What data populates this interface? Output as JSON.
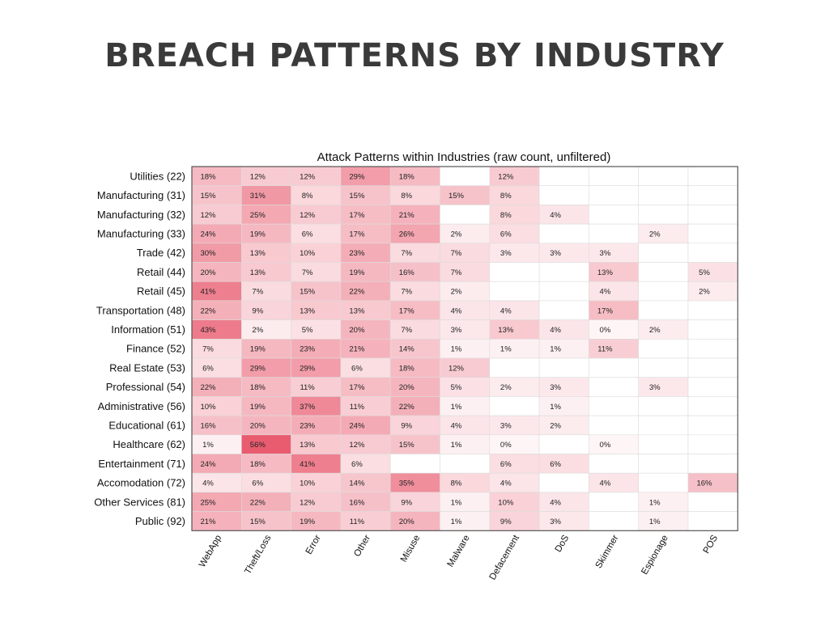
{
  "slide": {
    "title": "BREACH PATTERNS BY INDUSTRY"
  },
  "chart_data": {
    "type": "heatmap",
    "title": "Attack Patterns within Industries (raw count, unfiltered)",
    "colors": {
      "low": "#ffffff",
      "high": "#e8556a",
      "grid": "#dcdcdc",
      "border": "#555555"
    },
    "columns": [
      "WebApp",
      "Theft/Loss",
      "Error",
      "Other",
      "Misuse",
      "Malware",
      "Defacement",
      "DoS",
      "Skimmer",
      "Espionage",
      "POS"
    ],
    "rows": [
      {
        "label": "Utilities (22)",
        "values": [
          18,
          12,
          12,
          29,
          18,
          null,
          12,
          null,
          null,
          null,
          null
        ]
      },
      {
        "label": "Manufacturing (31)",
        "values": [
          15,
          31,
          8,
          15,
          8,
          15,
          8,
          null,
          null,
          null,
          null
        ]
      },
      {
        "label": "Manufacturing (32)",
        "values": [
          12,
          25,
          12,
          17,
          21,
          null,
          8,
          4,
          null,
          null,
          null
        ]
      },
      {
        "label": "Manufacturing (33)",
        "values": [
          24,
          19,
          6,
          17,
          26,
          2,
          6,
          null,
          null,
          2,
          null
        ]
      },
      {
        "label": "Trade (42)",
        "values": [
          30,
          13,
          10,
          23,
          7,
          7,
          3,
          3,
          3,
          null,
          null
        ]
      },
      {
        "label": "Retail (44)",
        "values": [
          20,
          13,
          7,
          19,
          16,
          7,
          null,
          null,
          13,
          null,
          5
        ]
      },
      {
        "label": "Retail (45)",
        "values": [
          41,
          7,
          15,
          22,
          7,
          2,
          null,
          null,
          4,
          null,
          2
        ]
      },
      {
        "label": "Transportation (48)",
        "values": [
          22,
          9,
          13,
          13,
          17,
          4,
          4,
          null,
          17,
          null,
          null
        ]
      },
      {
        "label": "Information (51)",
        "values": [
          43,
          2,
          5,
          20,
          7,
          3,
          13,
          4,
          0,
          2,
          null
        ]
      },
      {
        "label": "Finance (52)",
        "values": [
          7,
          19,
          23,
          21,
          14,
          1,
          1,
          1,
          11,
          null,
          null
        ]
      },
      {
        "label": "Real Estate (53)",
        "values": [
          6,
          29,
          29,
          6,
          18,
          12,
          null,
          null,
          null,
          null,
          null
        ]
      },
      {
        "label": "Professional (54)",
        "values": [
          22,
          18,
          11,
          17,
          20,
          5,
          2,
          3,
          null,
          3,
          null
        ]
      },
      {
        "label": "Administrative (56)",
        "values": [
          10,
          19,
          37,
          11,
          22,
          1,
          null,
          1,
          null,
          null,
          null
        ]
      },
      {
        "label": "Educational (61)",
        "values": [
          16,
          20,
          23,
          24,
          9,
          4,
          3,
          2,
          null,
          null,
          null
        ]
      },
      {
        "label": "Healthcare (62)",
        "values": [
          1,
          56,
          13,
          12,
          15,
          1,
          0,
          null,
          0,
          null,
          null
        ]
      },
      {
        "label": "Entertainment (71)",
        "values": [
          24,
          18,
          41,
          6,
          null,
          null,
          6,
          6,
          null,
          null,
          null
        ]
      },
      {
        "label": "Accomodation (72)",
        "values": [
          4,
          6,
          10,
          14,
          35,
          8,
          4,
          null,
          4,
          null,
          16
        ]
      },
      {
        "label": "Other Services (81)",
        "values": [
          25,
          22,
          12,
          16,
          9,
          1,
          10,
          4,
          null,
          1,
          null
        ]
      },
      {
        "label": "Public (92)",
        "values": [
          21,
          15,
          19,
          11,
          20,
          1,
          9,
          3,
          null,
          1,
          null
        ]
      }
    ]
  }
}
